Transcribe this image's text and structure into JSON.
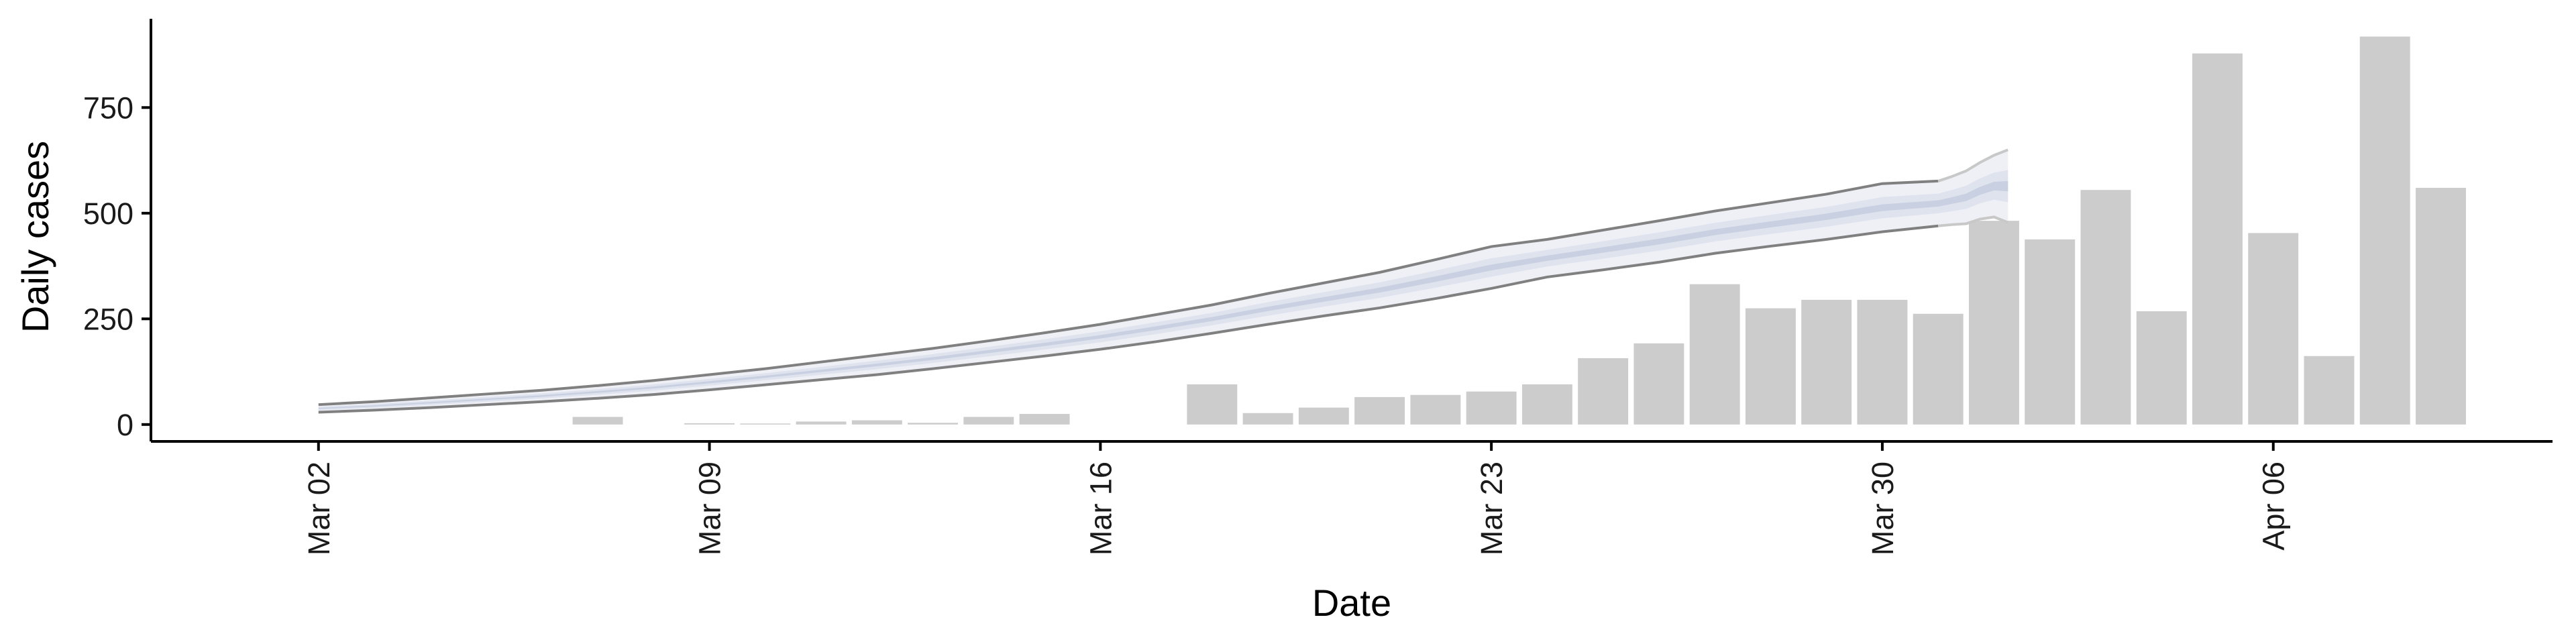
{
  "chart_data": {
    "type": "bar",
    "title": "",
    "xlabel": "Date",
    "ylabel": "Daily cases",
    "x_type": "date",
    "x_range": [
      "2020-02-28",
      "2020-04-11"
    ],
    "ylim": [
      -40,
      960
    ],
    "y_ticks": [
      {
        "value": 0,
        "label": "0"
      },
      {
        "value": 250,
        "label": "250"
      },
      {
        "value": 500,
        "label": "500"
      },
      {
        "value": 750,
        "label": "750"
      }
    ],
    "x_ticks": [
      {
        "date": "2020-03-02",
        "label": "Mar 02"
      },
      {
        "date": "2020-03-09",
        "label": "Mar 09"
      },
      {
        "date": "2020-03-16",
        "label": "Mar 16"
      },
      {
        "date": "2020-03-23",
        "label": "Mar 23"
      },
      {
        "date": "2020-03-30",
        "label": "Mar 30"
      },
      {
        "date": "2020-04-06",
        "label": "Apr 06"
      }
    ],
    "grid": false,
    "legend": "none",
    "bar_color": "#cccccc",
    "bars": [
      {
        "date": "2020-03-07",
        "value": 18
      },
      {
        "date": "2020-03-09",
        "value": 3
      },
      {
        "date": "2020-03-10",
        "value": 2
      },
      {
        "date": "2020-03-11",
        "value": 7
      },
      {
        "date": "2020-03-12",
        "value": 10
      },
      {
        "date": "2020-03-13",
        "value": 4
      },
      {
        "date": "2020-03-14",
        "value": 18
      },
      {
        "date": "2020-03-15",
        "value": 25
      },
      {
        "date": "2020-03-18",
        "value": 95
      },
      {
        "date": "2020-03-19",
        "value": 27
      },
      {
        "date": "2020-03-20",
        "value": 40
      },
      {
        "date": "2020-03-21",
        "value": 65
      },
      {
        "date": "2020-03-22",
        "value": 70
      },
      {
        "date": "2020-03-23",
        "value": 78
      },
      {
        "date": "2020-03-24",
        "value": 95
      },
      {
        "date": "2020-03-25",
        "value": 157
      },
      {
        "date": "2020-03-26",
        "value": 192
      },
      {
        "date": "2020-03-27",
        "value": 332
      },
      {
        "date": "2020-03-28",
        "value": 275
      },
      {
        "date": "2020-03-29",
        "value": 295
      },
      {
        "date": "2020-03-30",
        "value": 295
      },
      {
        "date": "2020-03-31",
        "value": 262
      },
      {
        "date": "2020-04-01",
        "value": 482
      },
      {
        "date": "2020-04-02",
        "value": 438
      },
      {
        "date": "2020-04-03",
        "value": 555
      },
      {
        "date": "2020-04-04",
        "value": 268
      },
      {
        "date": "2020-04-05",
        "value": 878
      },
      {
        "date": "2020-04-06",
        "value": 453
      },
      {
        "date": "2020-04-07",
        "value": 162
      },
      {
        "date": "2020-04-08",
        "value": 918
      },
      {
        "date": "2020-04-09",
        "value": 560
      }
    ],
    "fit": {
      "dates": [
        "2020-03-02",
        "2020-03-03",
        "2020-03-04",
        "2020-03-05",
        "2020-03-06",
        "2020-03-07",
        "2020-03-08",
        "2020-03-09",
        "2020-03-10",
        "2020-03-11",
        "2020-03-12",
        "2020-03-13",
        "2020-03-14",
        "2020-03-15",
        "2020-03-16",
        "2020-03-17",
        "2020-03-18",
        "2020-03-19",
        "2020-03-20",
        "2020-03-21",
        "2020-03-22",
        "2020-03-23",
        "2020-03-24",
        "2020-03-25",
        "2020-03-26",
        "2020-03-27",
        "2020-03-28",
        "2020-03-29",
        "2020-03-30",
        "2020-03-31"
      ],
      "upper90": [
        47,
        54,
        63,
        72,
        81,
        92,
        104,
        118,
        132,
        148,
        164,
        180,
        198,
        217,
        237,
        260,
        283,
        310,
        335,
        360,
        390,
        421,
        438,
        460,
        482,
        505,
        525,
        545,
        570,
        576
      ],
      "lower90": [
        29,
        34,
        40,
        47,
        54,
        62,
        71,
        82,
        94,
        106,
        118,
        132,
        147,
        162,
        178,
        196,
        216,
        237,
        257,
        276,
        298,
        322,
        349,
        366,
        384,
        405,
        422,
        438,
        456,
        470
      ],
      "upper_ext": [
        587,
        600,
        620,
        637,
        650
      ],
      "lower_ext": [
        473,
        475,
        486,
        491,
        478
      ],
      "center": [
        38,
        44,
        51,
        59,
        67,
        77,
        87,
        100,
        113,
        127,
        141,
        156,
        172,
        189,
        207,
        228,
        249,
        273,
        296,
        318,
        344,
        371,
        393,
        413,
        433,
        455,
        473,
        490,
        513,
        523,
        537,
        547,
        560,
        564,
        564
      ],
      "band_colors": [
        "#eef0f6",
        "#dfe3ee",
        "#c9d0e2"
      ],
      "line_color": "#808080"
    }
  }
}
